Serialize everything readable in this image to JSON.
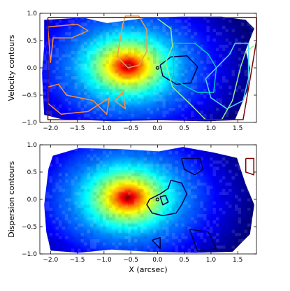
{
  "chart_data": [
    {
      "type": "heatmap",
      "title": "",
      "xlabel": "",
      "ylabel": "Velocity contours",
      "xlim": [
        -2.2,
        1.85
      ],
      "ylim": [
        -1.0,
        1.0
      ],
      "xticks": [
        "−2.0",
        "−1.5",
        "−1.0",
        "−0.5",
        "0.0",
        "0.5",
        "1.0",
        "1.5"
      ],
      "yticks": [
        "1.0",
        "0.5",
        "0.0",
        "−0.5",
        "−1.0"
      ],
      "intensity_peak": {
        "x": -0.55,
        "y": 0.03
      },
      "colormap": [
        "#00007f",
        "#0000ff",
        "#0080ff",
        "#00ffff",
        "#80ff80",
        "#ffff00",
        "#ff8000",
        "#ff0000",
        "#7f0000"
      ],
      "marker": {
        "x": 0.0,
        "y": 0.0
      },
      "contours": [
        {
          "color": "#ff8c3c",
          "points": [
            [
              -2.05,
              0.75
            ],
            [
              -1.5,
              0.8
            ],
            [
              -1.3,
              0.68
            ],
            [
              -1.6,
              0.55
            ],
            [
              -1.95,
              0.55
            ],
            [
              -2.0,
              0.1
            ],
            [
              -2.05,
              0.75
            ]
          ]
        },
        {
          "color": "#ff8c3c",
          "points": [
            [
              -2.05,
              -0.35
            ],
            [
              -1.85,
              -0.3
            ],
            [
              -1.7,
              -0.5
            ],
            [
              -1.45,
              -0.55
            ],
            [
              -1.2,
              -0.6
            ],
            [
              -0.95,
              -0.85
            ],
            [
              -0.9,
              -0.55
            ],
            [
              -1.3,
              -0.8
            ],
            [
              -1.8,
              -0.85
            ],
            [
              -2.05,
              -0.65
            ],
            [
              -2.05,
              -0.35
            ]
          ]
        },
        {
          "color": "#ff8c3c",
          "points": [
            [
              -0.8,
              -0.6
            ],
            [
              -0.65,
              -0.45
            ],
            [
              -0.6,
              -0.75
            ],
            [
              -0.8,
              -0.6
            ]
          ]
        },
        {
          "color": "#e8a050",
          "points": [
            [
              -0.65,
              0.8
            ],
            [
              -0.6,
              0.95
            ],
            [
              -0.35,
              0.95
            ],
            [
              -0.2,
              0.7
            ],
            [
              -0.2,
              0.3
            ],
            [
              -0.35,
              0.05
            ],
            [
              -0.55,
              0.0
            ],
            [
              -0.75,
              0.2
            ],
            [
              -0.7,
              0.5
            ],
            [
              -0.65,
              0.8
            ]
          ]
        },
        {
          "color": "#000050",
          "points": [
            [
              0.05,
              0.05
            ],
            [
              0.25,
              0.2
            ],
            [
              0.55,
              0.22
            ],
            [
              0.75,
              0.02
            ],
            [
              0.62,
              -0.28
            ],
            [
              0.35,
              -0.3
            ],
            [
              0.1,
              -0.15
            ],
            [
              0.05,
              0.05
            ]
          ]
        },
        {
          "color": "#00c8c8",
          "points": [
            [
              0.3,
              0.45
            ],
            [
              0.7,
              0.45
            ],
            [
              0.95,
              0.25
            ],
            [
              1.1,
              0.0
            ],
            [
              1.05,
              -0.45
            ],
            [
              0.75,
              -0.45
            ],
            [
              0.55,
              -0.35
            ],
            [
              0.3,
              -0.2
            ],
            [
              0.3,
              0.45
            ]
          ]
        },
        {
          "color": "#4fd8ff",
          "points": [
            [
              0.9,
              -0.2
            ],
            [
              1.2,
              0.1
            ],
            [
              1.35,
              0.25
            ],
            [
              1.45,
              0.45
            ],
            [
              1.7,
              0.45
            ],
            [
              1.7,
              -0.2
            ],
            [
              1.6,
              -0.6
            ],
            [
              1.3,
              -0.75
            ],
            [
              1.0,
              -0.55
            ],
            [
              0.9,
              -0.2
            ]
          ]
        },
        {
          "color": "#90ee90",
          "points": [
            [
              0.0,
              0.9
            ],
            [
              0.25,
              0.72
            ],
            [
              0.28,
              0.4
            ],
            [
              0.15,
              0.1
            ],
            [
              0.28,
              -0.35
            ],
            [
              0.65,
              -0.7
            ],
            [
              0.9,
              -0.95
            ],
            [
              1.2,
              -0.95
            ],
            [
              1.4,
              -0.6
            ],
            [
              1.55,
              0.0
            ],
            [
              1.65,
              0.3
            ],
            [
              1.8,
              0.4
            ]
          ]
        },
        {
          "color": "#7f0000",
          "points": [
            [
              -2.05,
              0.92
            ],
            [
              1.85,
              0.92
            ],
            [
              1.85,
              0.5
            ],
            [
              1.75,
              -0.1
            ],
            [
              1.6,
              -0.95
            ],
            [
              -2.05,
              -0.95
            ],
            [
              -2.05,
              0.92
            ]
          ]
        }
      ]
    },
    {
      "type": "heatmap",
      "title": "",
      "xlabel": "X (arcsec)",
      "ylabel": "Dispersion contours",
      "xlim": [
        -2.2,
        1.85
      ],
      "ylim": [
        -1.0,
        1.0
      ],
      "xticks": [
        "−2.0",
        "−1.5",
        "−1.0",
        "−0.5",
        "0.0",
        "0.5",
        "1.0",
        "1.5"
      ],
      "yticks": [
        "1.0",
        "0.5",
        "0.0",
        "−0.5",
        "−1.0"
      ],
      "intensity_peak": {
        "x": -0.55,
        "y": 0.03
      },
      "colormap": [
        "#00007f",
        "#0000ff",
        "#0080ff",
        "#00ffff",
        "#80ff80",
        "#ffff00",
        "#ff8000",
        "#ff0000",
        "#7f0000"
      ],
      "marker": {
        "x": 0.0,
        "y": 0.0
      },
      "contours": [
        {
          "color": "#000050",
          "points": [
            [
              -0.15,
              0.0
            ],
            [
              0.05,
              0.1
            ],
            [
              0.2,
              0.2
            ],
            [
              0.25,
              0.35
            ],
            [
              0.45,
              0.3
            ],
            [
              0.55,
              0.1
            ],
            [
              0.45,
              -0.1
            ],
            [
              0.35,
              -0.25
            ],
            [
              0.1,
              -0.3
            ],
            [
              -0.1,
              -0.25
            ],
            [
              -0.2,
              -0.1
            ],
            [
              -0.15,
              0.0
            ]
          ]
        },
        {
          "color": "#000050",
          "points": [
            [
              0.05,
              0.05
            ],
            [
              0.15,
              0.07
            ],
            [
              0.2,
              -0.05
            ],
            [
              0.1,
              -0.1
            ],
            [
              0.05,
              0.05
            ]
          ]
        },
        {
          "color": "#000050",
          "points": [
            [
              0.45,
              0.75
            ],
            [
              0.8,
              0.75
            ],
            [
              0.85,
              0.55
            ],
            [
              0.7,
              0.45
            ],
            [
              0.5,
              0.55
            ],
            [
              0.45,
              0.75
            ]
          ]
        },
        {
          "color": "#000050",
          "points": [
            [
              0.6,
              -0.55
            ],
            [
              0.95,
              -0.6
            ],
            [
              1.1,
              -0.9
            ],
            [
              0.75,
              -0.95
            ],
            [
              0.6,
              -0.55
            ]
          ]
        },
        {
          "color": "#000050",
          "points": [
            [
              -0.1,
              -0.75
            ],
            [
              0.05,
              -0.7
            ],
            [
              0.05,
              -0.9
            ],
            [
              -0.1,
              -0.75
            ]
          ]
        },
        {
          "color": "#7f0000",
          "points": [
            [
              1.65,
              0.75
            ],
            [
              1.8,
              0.75
            ],
            [
              1.8,
              0.45
            ],
            [
              1.65,
              0.5
            ],
            [
              1.65,
              0.75
            ]
          ]
        }
      ]
    }
  ]
}
